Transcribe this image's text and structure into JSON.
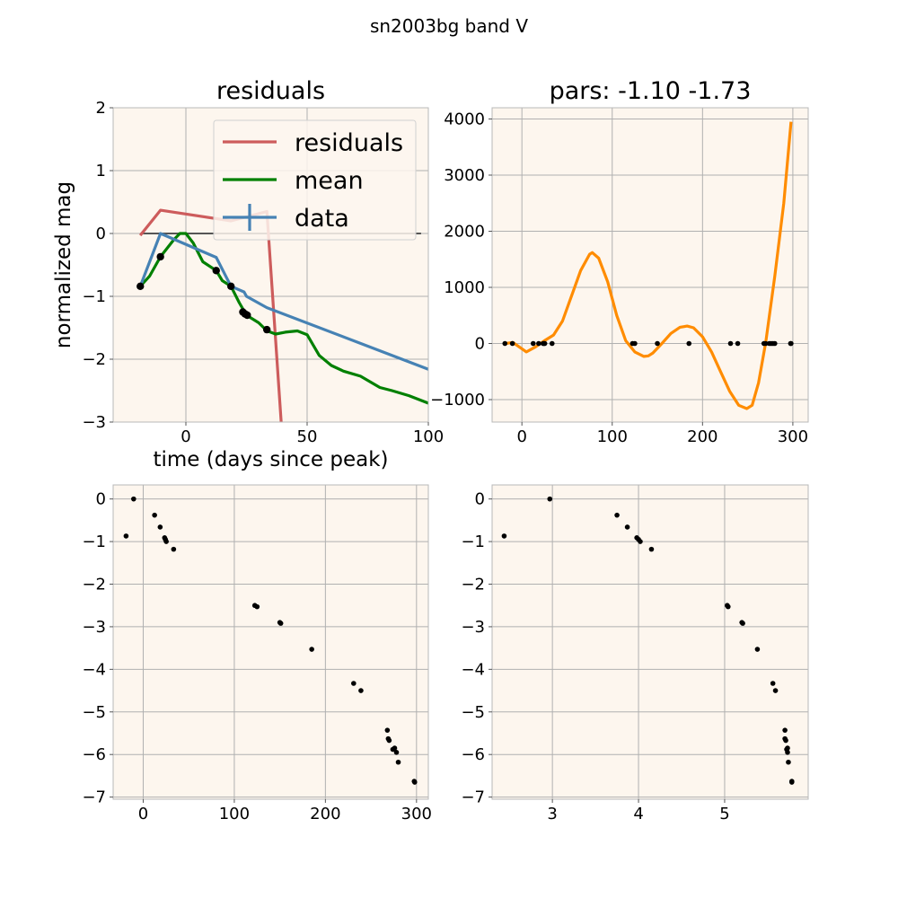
{
  "figure": {
    "suptitle": "sn2003bg band V"
  },
  "colors": {
    "axes_bg": "#fdf6ee",
    "grid": "#b0b0b0",
    "residuals": "#cd5c5c",
    "mean": "#008000",
    "data": "#4682b4",
    "fit": "#ff8c00",
    "points": "#000000",
    "zero_line": "#555555"
  },
  "chart_data": [
    {
      "id": "residuals",
      "type": "line",
      "title": "residuals",
      "xlabel": "time (days since peak)",
      "ylabel": "normalized mag",
      "xlim": [
        -30,
        100
      ],
      "ylim": [
        -3,
        2
      ],
      "xticks": [
        0,
        50,
        100
      ],
      "yticks": [
        2,
        1,
        0,
        -1,
        -2,
        -3
      ],
      "grid": true,
      "legend": {
        "placement": "upper-right",
        "entries": [
          "residuals",
          "mean",
          "data"
        ]
      },
      "series": [
        {
          "name": "residuals",
          "x": [
            -18.8,
            -10.5,
            18.6,
            33.4,
            39.5
          ],
          "y": [
            -0.03,
            0.37,
            0.2,
            0.35,
            -3.1
          ]
        },
        {
          "name": "mean",
          "x": [
            -18.8,
            -15,
            -10.5,
            -5,
            -2.5,
            0,
            3,
            7,
            12.5,
            15,
            18.6,
            22,
            25,
            30,
            33.5,
            37,
            41,
            46,
            50,
            55,
            60,
            65,
            72,
            80,
            85,
            92,
            100
          ],
          "y": [
            -0.84,
            -0.68,
            -0.37,
            -0.1,
            0.0,
            0.0,
            -0.15,
            -0.45,
            -0.59,
            -0.75,
            -0.84,
            -1.1,
            -1.3,
            -1.42,
            -1.55,
            -1.6,
            -1.57,
            -1.55,
            -1.61,
            -1.94,
            -2.1,
            -2.19,
            -2.27,
            -2.45,
            -2.5,
            -2.58,
            -2.7
          ]
        },
        {
          "name": "data",
          "x": [
            -18.8,
            -10.5,
            12.5,
            18.6,
            24,
            25,
            33.4,
            100
          ],
          "y": [
            -0.84,
            0.0,
            -0.38,
            -0.84,
            -0.93,
            -1.0,
            -1.18,
            -2.16
          ]
        }
      ],
      "points": {
        "x": [
          -18.8,
          -10.5,
          12.5,
          18.6,
          23.5,
          24.4,
          25.3,
          33.4
        ],
        "y": [
          -0.84,
          -0.37,
          -0.59,
          -0.84,
          -1.25,
          -1.28,
          -1.3,
          -1.53
        ]
      },
      "hline": 0
    },
    {
      "id": "pars",
      "type": "line",
      "title": "pars: -1.10 -1.73",
      "xlim": [
        -33,
        317
      ],
      "ylim": [
        -1400,
        4200
      ],
      "xticks": [
        0,
        100,
        200,
        300
      ],
      "yticks": [
        4000,
        3000,
        2000,
        1000,
        0,
        -1000
      ],
      "grid": true,
      "series": [
        {
          "name": "",
          "x": [
            -18,
            -10,
            -3,
            5,
            15,
            25,
            35,
            45,
            55,
            65,
            75,
            78,
            85,
            95,
            105,
            115,
            125,
            135,
            140,
            145,
            155,
            165,
            175,
            183,
            190,
            200,
            210,
            220,
            230,
            240,
            249,
            255,
            262,
            270,
            280,
            290,
            298
          ],
          "y": [
            0,
            20,
            -60,
            -150,
            -60,
            50,
            150,
            400,
            850,
            1300,
            1590,
            1620,
            1520,
            1100,
            500,
            50,
            -150,
            -230,
            -220,
            -170,
            0,
            180,
            290,
            310,
            280,
            120,
            -150,
            -500,
            -850,
            -1100,
            -1160,
            -1100,
            -700,
            20,
            1200,
            2500,
            3950
          ]
        }
      ],
      "points": {
        "x": [
          -18.8,
          -10.5,
          12.5,
          18.6,
          23.5,
          24.4,
          25.3,
          33.4,
          122.5,
          125,
          150,
          185,
          231,
          239,
          268,
          270,
          274,
          276,
          278,
          280,
          297.5,
          298
        ],
        "y": [
          0,
          0,
          0,
          0,
          0,
          0,
          0,
          0,
          0,
          0,
          0,
          0,
          0,
          0,
          0,
          0,
          0,
          0,
          0,
          0,
          0,
          0
        ]
      }
    },
    {
      "id": "lin",
      "type": "scatter",
      "xlim": [
        -33,
        313
      ],
      "ylim": [
        -7.05,
        0.33
      ],
      "xticks": [
        0,
        100,
        200,
        300
      ],
      "yticks": [
        0,
        -1,
        -2,
        -3,
        -4,
        -5,
        -6,
        -7
      ],
      "grid": true,
      "points": {
        "x": [
          -18.8,
          -10.5,
          12.5,
          18.6,
          23.5,
          24.4,
          25.3,
          33.4,
          122.5,
          125,
          150,
          151,
          185,
          231,
          239,
          268,
          269,
          270,
          274,
          276,
          278,
          280,
          297.5,
          298
        ],
        "y": [
          -0.87,
          0.0,
          -0.38,
          -0.66,
          -0.91,
          -0.95,
          -1.0,
          -1.18,
          -2.5,
          -2.53,
          -2.9,
          -2.92,
          -3.53,
          -4.33,
          -4.5,
          -5.43,
          -5.63,
          -5.67,
          -5.88,
          -5.85,
          -5.95,
          -6.18,
          -6.63,
          -6.65
        ]
      }
    },
    {
      "id": "log",
      "type": "scatter",
      "xlim": [
        2.3,
        5.97
      ],
      "ylim": [
        -7.05,
        0.33
      ],
      "xticks": [
        3,
        4,
        5
      ],
      "yticks": [
        0,
        -1,
        -2,
        -3,
        -4,
        -5,
        -6,
        -7
      ],
      "grid": true,
      "points": {
        "x": [
          2.44,
          2.97,
          3.75,
          3.87,
          3.98,
          4.0,
          4.02,
          4.15,
          5.03,
          5.04,
          5.2,
          5.21,
          5.38,
          5.56,
          5.59,
          5.7,
          5.7,
          5.71,
          5.72,
          5.73,
          5.73,
          5.74,
          5.78,
          5.78
        ],
        "y": [
          -0.87,
          0.0,
          -0.38,
          -0.66,
          -0.91,
          -0.95,
          -1.0,
          -1.18,
          -2.5,
          -2.53,
          -2.9,
          -2.92,
          -3.53,
          -4.33,
          -4.5,
          -5.43,
          -5.63,
          -5.67,
          -5.88,
          -5.85,
          -5.95,
          -6.18,
          -6.63,
          -6.65
        ]
      }
    }
  ]
}
